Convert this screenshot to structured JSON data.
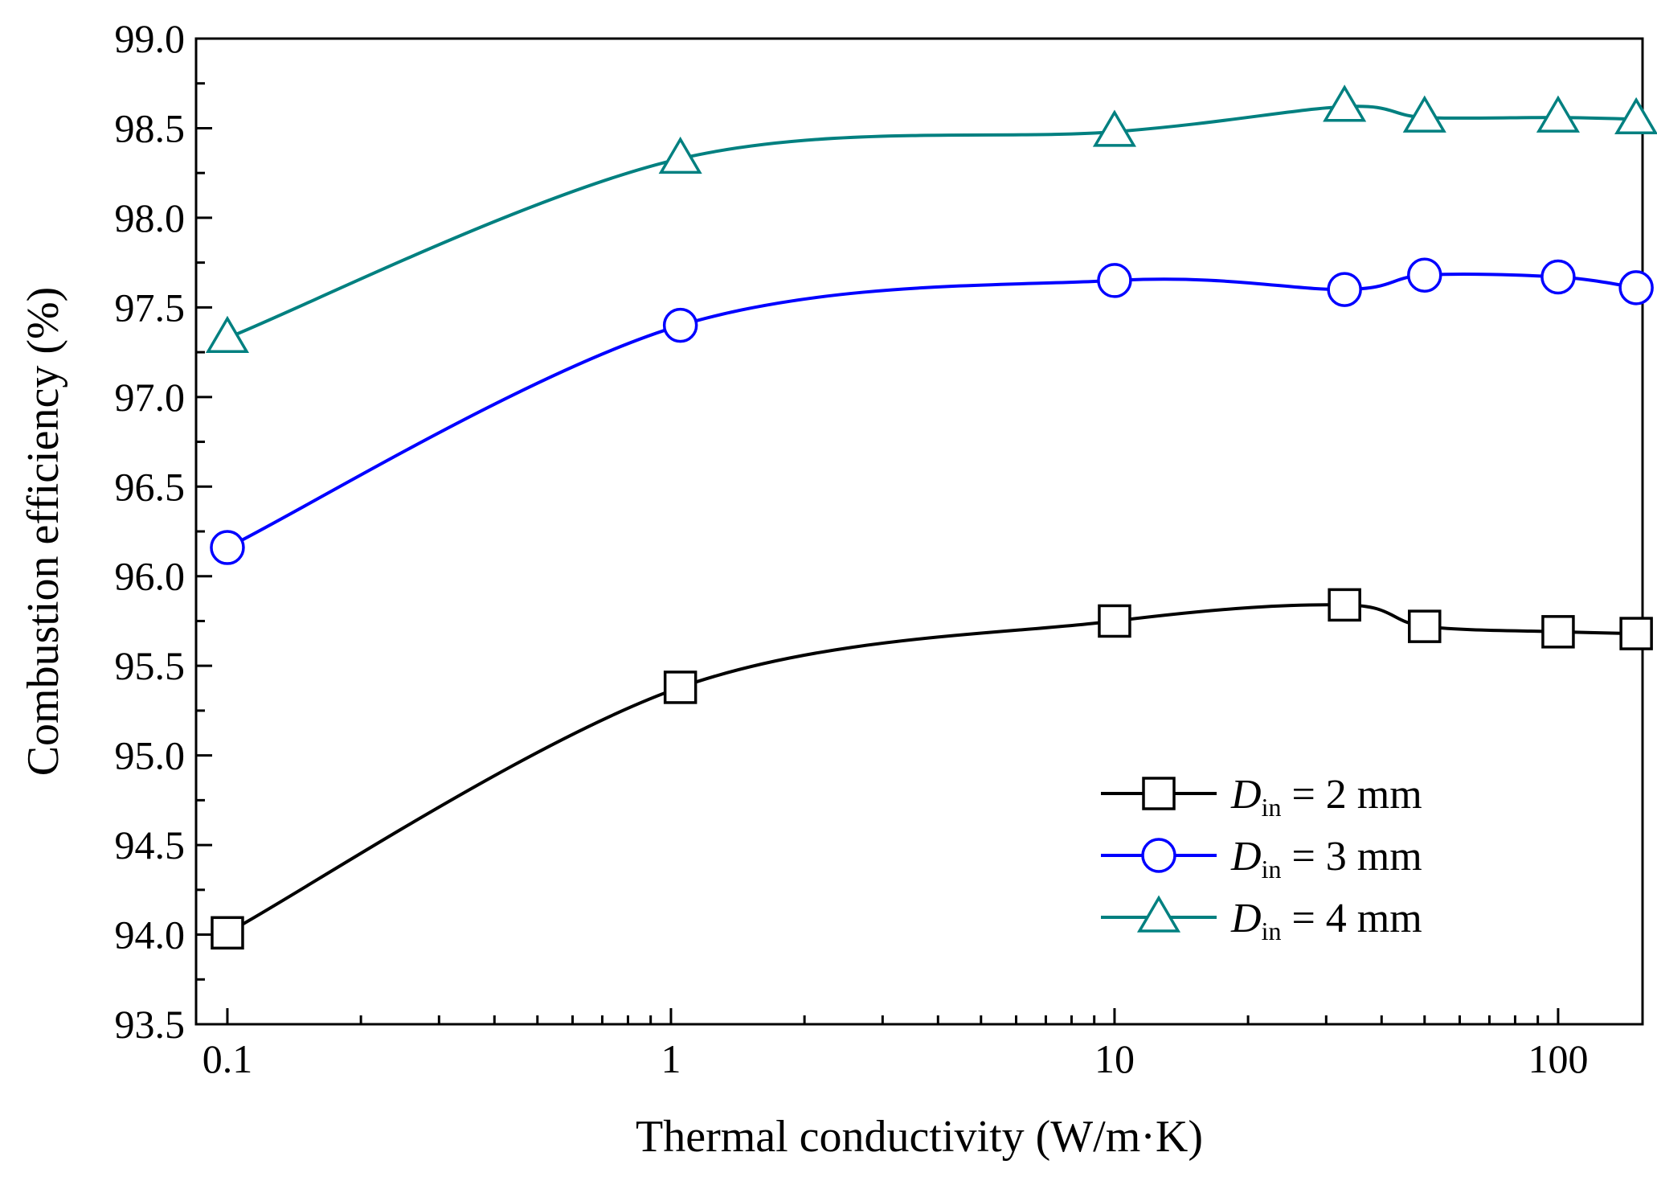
{
  "chart_data": {
    "type": "line",
    "title": "",
    "xlabel": "Thermal conductivity (W/m·K)",
    "ylabel": "Combustion efficiency (%)",
    "xscale": "log",
    "xlim": [
      0.085,
      155
    ],
    "ylim": [
      93.5,
      99.0
    ],
    "xticks": [
      0.1,
      1,
      10,
      100
    ],
    "xtick_labels": [
      "0.1",
      "1",
      "10",
      "100"
    ],
    "yticks": [
      93.5,
      94.0,
      94.5,
      95.0,
      95.5,
      96.0,
      96.5,
      97.0,
      97.5,
      98.0,
      98.5,
      99.0
    ],
    "ytick_labels": [
      "93.5",
      "94.0",
      "94.5",
      "95.0",
      "95.5",
      "96.0",
      "96.5",
      "97.0",
      "97.5",
      "98.0",
      "98.5",
      "99.0"
    ],
    "grid": false,
    "legend_position": "bottom-right",
    "x": [
      0.1,
      1.05,
      10,
      33,
      50,
      100,
      150
    ],
    "series": [
      {
        "name_italic": "D",
        "name_sub": "in",
        "name_rest": " = 2 mm",
        "marker": "square",
        "color": "#000000",
        "values": [
          94.01,
          95.38,
          95.75,
          95.84,
          95.72,
          95.69,
          95.68
        ]
      },
      {
        "name_italic": "D",
        "name_sub": "in",
        "name_rest": " = 3 mm",
        "marker": "circle",
        "color": "#0000ff",
        "values": [
          96.16,
          97.4,
          97.65,
          97.6,
          97.68,
          97.67,
          97.61
        ]
      },
      {
        "name_italic": "D",
        "name_sub": "in",
        "name_rest": " = 4 mm",
        "marker": "triangle",
        "color": "#008080",
        "values": [
          97.33,
          98.33,
          98.48,
          98.62,
          98.56,
          98.56,
          98.55
        ]
      }
    ]
  }
}
